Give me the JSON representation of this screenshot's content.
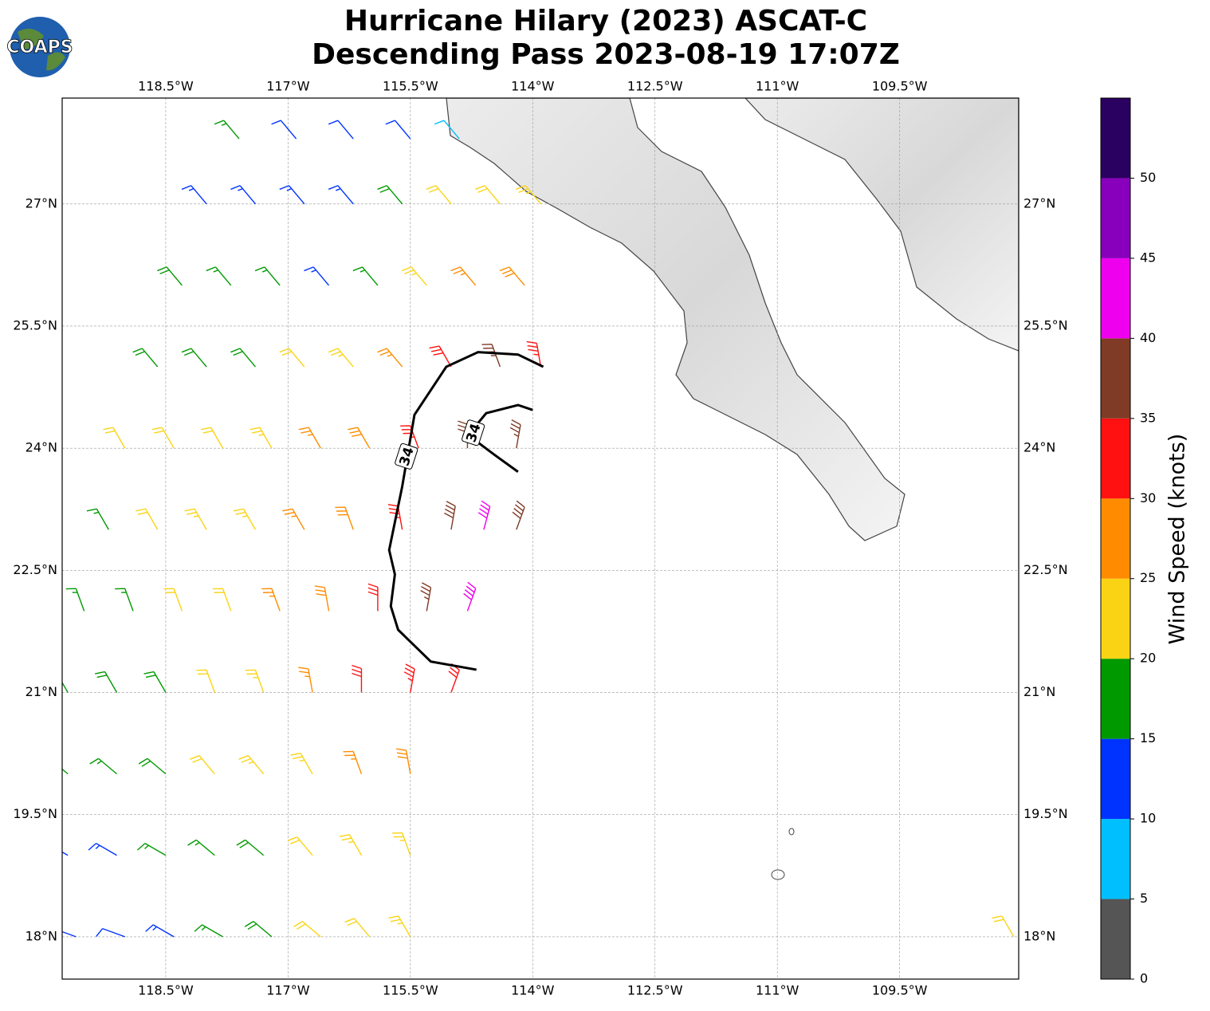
{
  "logo": "COAPS",
  "title": [
    "Hurricane Hilary (2023) ASCAT-C",
    "Descending Pass 2023-08-19 17:07Z"
  ],
  "map": {
    "xlim": [
      -119.77,
      -108.04
    ],
    "ylim": [
      17.48,
      28.3
    ],
    "grid": true,
    "xticks": [
      {
        "value": -118.5,
        "label": "118.5°W"
      },
      {
        "value": -117,
        "label": "117°W"
      },
      {
        "value": -115.5,
        "label": "115.5°W"
      },
      {
        "value": -114,
        "label": "114°W"
      },
      {
        "value": -112.5,
        "label": "112.5°W"
      },
      {
        "value": -111,
        "label": "111°W"
      },
      {
        "value": -109.5,
        "label": "109.5°W"
      }
    ],
    "yticks": [
      {
        "value": 27,
        "label": "27°N"
      },
      {
        "value": 25.5,
        "label": "25.5°N"
      },
      {
        "value": 24,
        "label": "24°N"
      },
      {
        "value": 22.5,
        "label": "22.5°N"
      },
      {
        "value": 21,
        "label": "21°N"
      },
      {
        "value": 19.5,
        "label": "19.5°N"
      },
      {
        "value": 18,
        "label": "18°N"
      }
    ],
    "contours": [
      {
        "label": "34",
        "label_at": [
          -115.55,
          23.9
        ],
        "points": [
          [
            -114.69,
            21.28
          ],
          [
            -115.25,
            21.38
          ],
          [
            -115.65,
            21.77
          ],
          [
            -115.74,
            22.06
          ],
          [
            -115.69,
            22.45
          ],
          [
            -115.76,
            22.75
          ],
          [
            -115.6,
            23.53
          ],
          [
            -115.45,
            24.41
          ],
          [
            -115.06,
            25.0
          ],
          [
            -114.67,
            25.18
          ],
          [
            -114.18,
            25.15
          ],
          [
            -113.87,
            25.0
          ]
        ]
      },
      {
        "label": "34",
        "label_at": [
          -114.73,
          24.19
        ],
        "points": [
          [
            -114.18,
            23.71
          ],
          [
            -114.47,
            23.92
          ],
          [
            -114.67,
            24.07
          ],
          [
            -114.67,
            24.31
          ],
          [
            -114.57,
            24.43
          ],
          [
            -114.18,
            24.53
          ],
          [
            -114.0,
            24.47
          ]
        ]
      }
    ],
    "barbs": [
      [
        -117.6,
        27.8,
        15,
        320
      ],
      [
        -116.9,
        27.8,
        12,
        320
      ],
      [
        -116.2,
        27.8,
        12,
        320
      ],
      [
        -115.5,
        27.8,
        12,
        320
      ],
      [
        -114.9,
        27.8,
        8,
        320
      ],
      [
        -118.0,
        27,
        14,
        320
      ],
      [
        -117.4,
        27,
        14,
        320
      ],
      [
        -116.8,
        27,
        13,
        320
      ],
      [
        -116.2,
        27,
        13,
        320
      ],
      [
        -115.6,
        27,
        18,
        320
      ],
      [
        -115.0,
        27,
        20,
        320
      ],
      [
        -114.4,
        27,
        22,
        320
      ],
      [
        -113.9,
        27,
        23,
        320
      ],
      [
        -118.3,
        26,
        18,
        320
      ],
      [
        -117.7,
        26,
        17,
        320
      ],
      [
        -117.1,
        26,
        17,
        320
      ],
      [
        -116.5,
        26,
        14,
        320
      ],
      [
        -115.9,
        26,
        17,
        320
      ],
      [
        -115.3,
        26,
        23,
        320
      ],
      [
        -114.7,
        26,
        27,
        320
      ],
      [
        -114.1,
        26,
        28,
        320
      ],
      [
        -118.6,
        25,
        19,
        320
      ],
      [
        -118.0,
        25,
        19,
        320
      ],
      [
        -117.4,
        25,
        18,
        320
      ],
      [
        -116.8,
        25,
        22,
        320
      ],
      [
        -116.2,
        25,
        24,
        320
      ],
      [
        -115.6,
        25,
        27,
        320
      ],
      [
        -115.0,
        25,
        32,
        330
      ],
      [
        -114.4,
        25,
        36,
        340
      ],
      [
        -113.9,
        25,
        34,
        350
      ],
      [
        -119.0,
        24,
        22,
        330
      ],
      [
        -118.4,
        24,
        21,
        330
      ],
      [
        -117.8,
        24,
        22,
        330
      ],
      [
        -117.2,
        24,
        23,
        330
      ],
      [
        -116.6,
        24,
        26,
        330
      ],
      [
        -116.0,
        24,
        28,
        330
      ],
      [
        -115.4,
        24,
        33,
        340
      ],
      [
        -114.8,
        24,
        37,
        0
      ],
      [
        -114.2,
        24,
        36,
        10
      ],
      [
        -119.2,
        23,
        17,
        330
      ],
      [
        -118.6,
        23,
        22,
        330
      ],
      [
        -118.0,
        23,
        23,
        330
      ],
      [
        -117.4,
        23,
        24,
        330
      ],
      [
        -116.8,
        23,
        27,
        330
      ],
      [
        -116.2,
        23,
        29,
        340
      ],
      [
        -115.6,
        23,
        33,
        350
      ],
      [
        -115.0,
        23,
        38,
        10
      ],
      [
        -114.6,
        23,
        42,
        15
      ],
      [
        -114.2,
        23,
        38,
        20
      ],
      [
        -119.5,
        22,
        17,
        340
      ],
      [
        -118.9,
        22,
        17,
        340
      ],
      [
        -118.3,
        22,
        21,
        340
      ],
      [
        -117.7,
        22,
        22,
        340
      ],
      [
        -117.1,
        22,
        26,
        340
      ],
      [
        -116.5,
        22,
        28,
        350
      ],
      [
        -115.9,
        22,
        31,
        0
      ],
      [
        -115.3,
        22,
        37,
        10
      ],
      [
        -114.8,
        22,
        42,
        20
      ],
      [
        -119.7,
        21,
        17,
        330
      ],
      [
        -119.1,
        21,
        18,
        330
      ],
      [
        -118.5,
        21,
        19,
        330
      ],
      [
        -117.9,
        21,
        21,
        340
      ],
      [
        -117.3,
        21,
        24,
        340
      ],
      [
        -116.7,
        21,
        27,
        350
      ],
      [
        -116.1,
        21,
        30,
        0
      ],
      [
        -115.5,
        21,
        33,
        10
      ],
      [
        -115.0,
        21,
        32,
        20
      ],
      [
        -119.7,
        20,
        16,
        310
      ],
      [
        -119.1,
        20,
        17,
        310
      ],
      [
        -118.5,
        20,
        18,
        310
      ],
      [
        -117.9,
        20,
        20,
        320
      ],
      [
        -117.3,
        20,
        23,
        320
      ],
      [
        -116.7,
        20,
        24,
        330
      ],
      [
        -116.1,
        20,
        26,
        340
      ],
      [
        -115.5,
        20,
        28,
        350
      ],
      [
        -119.7,
        19,
        13,
        300
      ],
      [
        -119.1,
        19,
        14,
        300
      ],
      [
        -118.5,
        19,
        16,
        300
      ],
      [
        -117.9,
        19,
        17,
        310
      ],
      [
        -117.3,
        19,
        19,
        310
      ],
      [
        -116.7,
        19,
        22,
        320
      ],
      [
        -116.1,
        19,
        23,
        330
      ],
      [
        -115.5,
        19,
        24,
        340
      ],
      [
        -119.6,
        18,
        11,
        290
      ],
      [
        -119.0,
        18,
        12,
        290
      ],
      [
        -118.4,
        18,
        14,
        300
      ],
      [
        -117.8,
        18,
        17,
        300
      ],
      [
        -117.2,
        18,
        18,
        310
      ],
      [
        -116.6,
        18,
        21,
        310
      ],
      [
        -116.0,
        18,
        22,
        320
      ],
      [
        -115.5,
        18,
        23,
        330
      ],
      [
        -108.1,
        18,
        22,
        330
      ]
    ]
  },
  "colorbar": {
    "label": "Wind Speed (knots)",
    "lim": [
      0,
      55
    ],
    "ticks": [
      0,
      5,
      10,
      15,
      20,
      25,
      30,
      35,
      40,
      45,
      50
    ],
    "colors": [
      "#555555",
      "#00bfff",
      "#0033ff",
      "#009900",
      "#fad414",
      "#ff8c00",
      "#ff1111",
      "#7f3b26",
      "#ee00ee",
      "#8800bb",
      "#2a0060"
    ]
  }
}
